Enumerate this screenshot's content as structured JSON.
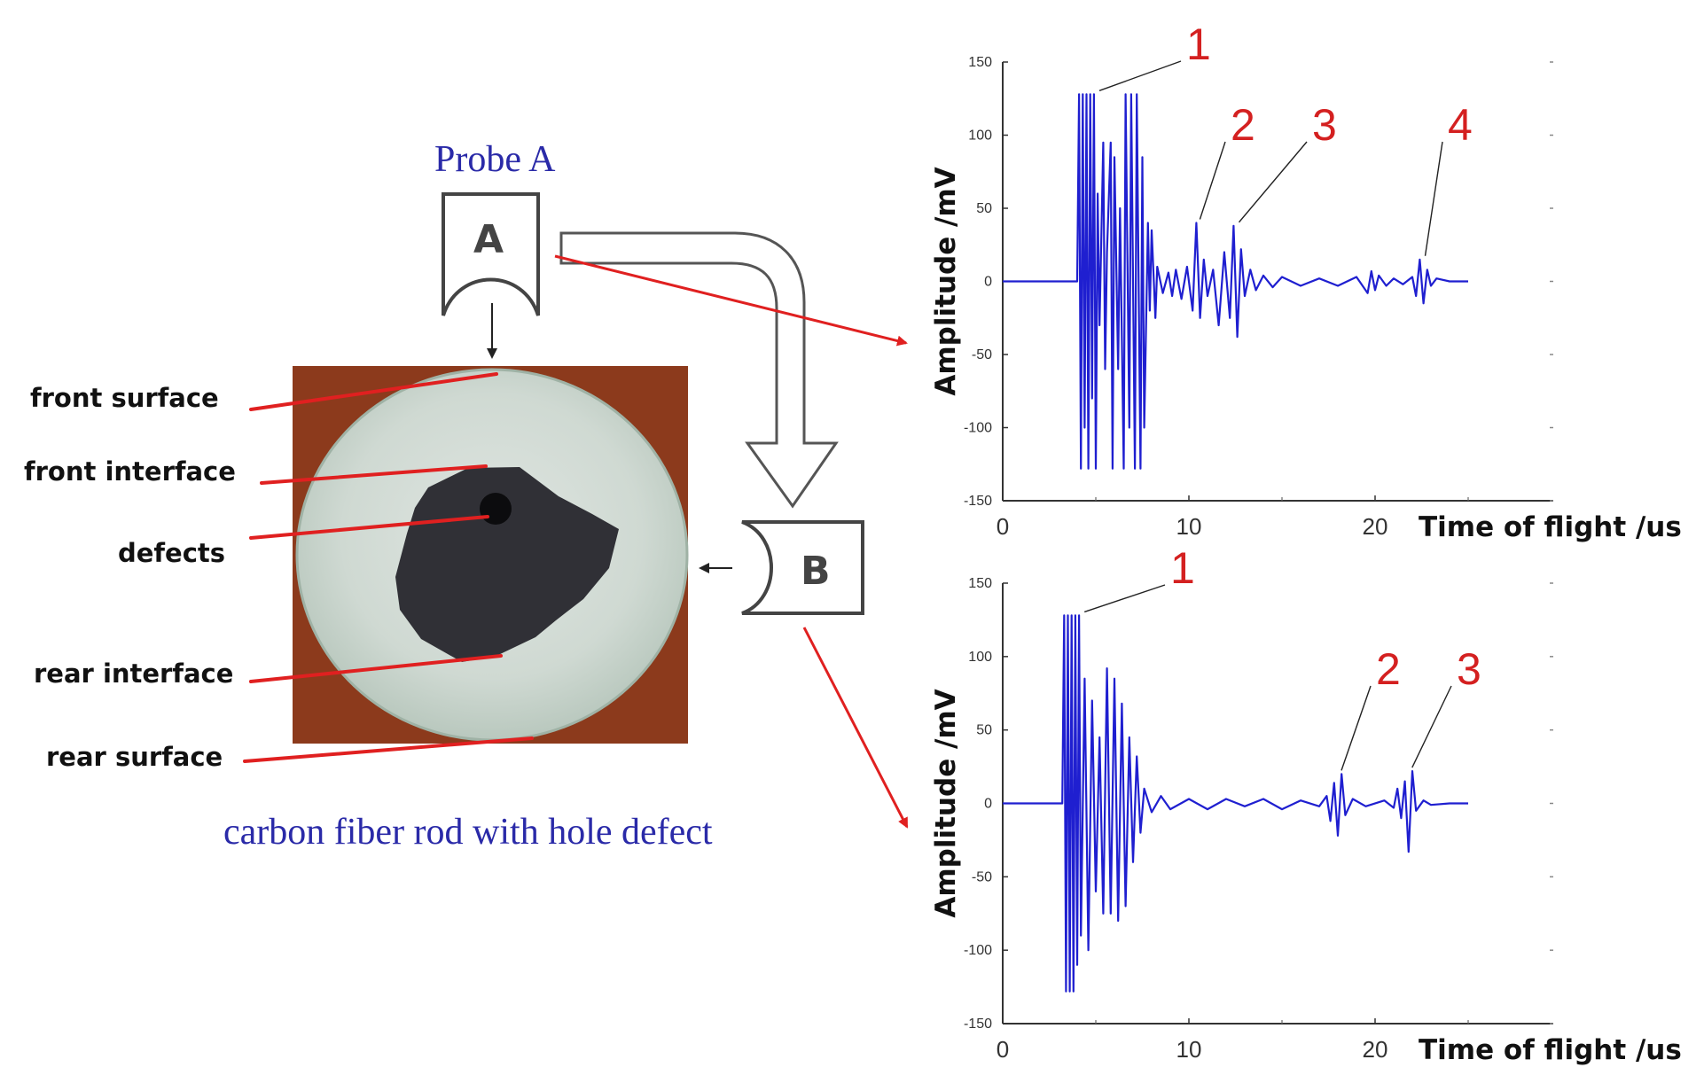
{
  "diagram": {
    "probe_label": "Probe A",
    "probe_a_letter": "A",
    "probe_b_letter": "B",
    "caption": "carbon fiber rod with hole defect",
    "labels": {
      "front_surface": "front surface",
      "front_interface": "front interface",
      "defects": "defects",
      "rear_interface": "rear interface",
      "rear_surface": "rear surface"
    }
  },
  "colors": {
    "signal": "#1f1fd0",
    "leader": "#e02020",
    "peak_label": "#d42020",
    "caption": "#2a2aa8"
  },
  "chart_data": [
    {
      "type": "line",
      "probe": "A",
      "ylabel": "Amplitude /mV",
      "xlabel": "Time of flight /us",
      "xlim": [
        0,
        30
      ],
      "ylim": [
        -150,
        150
      ],
      "yticks": [
        "150",
        "100",
        "50",
        "0",
        "-50",
        "-100",
        "-150"
      ],
      "xticks": [
        "0",
        "10",
        "20"
      ],
      "peak_labels": [
        "1",
        "2",
        "3",
        "4"
      ],
      "peaks": [
        {
          "label": "1",
          "x": 5.0,
          "y": 128
        },
        {
          "label": "2",
          "x": 10.4,
          "y": 40
        },
        {
          "label": "3",
          "x": 12.5,
          "y": 38
        },
        {
          "label": "4",
          "x": 22.5,
          "y": 15
        }
      ],
      "series": [
        {
          "x": [
            0,
            4.0,
            4.1,
            4.2,
            4.3,
            4.4,
            4.5,
            4.6,
            4.7,
            4.8,
            4.9,
            5.0,
            5.1,
            5.2,
            5.4,
            5.5,
            5.6,
            5.8,
            5.9,
            6.0,
            6.2,
            6.3,
            6.5,
            6.6,
            6.8,
            6.9,
            7.1,
            7.2,
            7.4,
            7.5,
            7.6,
            7.8,
            7.9,
            8.0,
            8.2,
            8.3,
            8.6,
            8.9,
            9.1,
            9.3,
            9.6,
            9.9,
            10.2,
            10.4,
            10.6,
            10.8,
            11.0,
            11.3,
            11.6,
            11.9,
            12.2,
            12.4,
            12.6,
            12.8,
            13.0,
            13.3,
            13.6,
            14.0,
            14.5,
            15.0,
            16.0,
            17.0,
            18.0,
            19.0,
            19.6,
            19.8,
            20.0,
            20.2,
            20.6,
            21.0,
            21.5,
            22.0,
            22.2,
            22.4,
            22.6,
            22.8,
            23.0,
            23.3,
            24.0,
            25.0
          ],
          "y": [
            0,
            0,
            128,
            -128,
            128,
            -100,
            128,
            -128,
            128,
            -80,
            128,
            -128,
            60,
            -30,
            95,
            -60,
            20,
            95,
            -128,
            85,
            -60,
            50,
            -128,
            128,
            -100,
            128,
            -128,
            128,
            -128,
            85,
            -100,
            40,
            -20,
            35,
            -25,
            10,
            -8,
            6,
            -10,
            8,
            -12,
            10,
            -20,
            40,
            -25,
            15,
            -10,
            8,
            -30,
            20,
            -25,
            38,
            -38,
            22,
            -10,
            8,
            -6,
            4,
            -4,
            3,
            -3,
            2,
            -3,
            3,
            -8,
            7,
            -6,
            4,
            -3,
            2,
            -2,
            3,
            -10,
            15,
            -15,
            8,
            -3,
            2,
            0,
            0
          ]
        }
      ]
    },
    {
      "type": "line",
      "probe": "B",
      "ylabel": "Amplitude /mV",
      "xlabel": "Time of flight /us",
      "xlim": [
        0,
        30
      ],
      "ylim": [
        -150,
        150
      ],
      "yticks": [
        "150",
        "100",
        "50",
        "0",
        "-50",
        "-100",
        "-150"
      ],
      "xticks": [
        "0",
        "10",
        "20"
      ],
      "peak_labels": [
        "1",
        "2",
        "3"
      ],
      "peaks": [
        {
          "label": "1",
          "x": 4.2,
          "y": 128
        },
        {
          "label": "2",
          "x": 18.0,
          "y": 20
        },
        {
          "label": "3",
          "x": 21.8,
          "y": 22
        }
      ],
      "series": [
        {
          "x": [
            0,
            3.2,
            3.3,
            3.4,
            3.5,
            3.6,
            3.7,
            3.8,
            3.9,
            4.0,
            4.1,
            4.2,
            4.4,
            4.6,
            4.8,
            5.0,
            5.2,
            5.4,
            5.6,
            5.8,
            6.0,
            6.2,
            6.4,
            6.6,
            6.8,
            7.0,
            7.2,
            7.4,
            7.6,
            8.0,
            8.5,
            9.0,
            10.0,
            11.0,
            12.0,
            13.0,
            14.0,
            15.0,
            16.0,
            17.0,
            17.4,
            17.6,
            17.8,
            18.0,
            18.2,
            18.4,
            18.8,
            19.5,
            20.5,
            21.0,
            21.2,
            21.4,
            21.6,
            21.8,
            22.0,
            22.2,
            22.6,
            23.0,
            24.0,
            25.0
          ],
          "y": [
            0,
            0,
            128,
            -128,
            128,
            -128,
            128,
            -128,
            128,
            -110,
            128,
            -90,
            85,
            -100,
            70,
            -60,
            45,
            -75,
            92,
            -75,
            85,
            -80,
            68,
            -70,
            45,
            -40,
            32,
            -20,
            10,
            -6,
            5,
            -4,
            3,
            -4,
            3,
            -2,
            3,
            -4,
            2,
            -2,
            5,
            -12,
            14,
            -22,
            20,
            -8,
            3,
            -2,
            2,
            -3,
            10,
            -10,
            15,
            -33,
            22,
            -5,
            2,
            -1,
            0,
            0
          ]
        }
      ]
    }
  ]
}
